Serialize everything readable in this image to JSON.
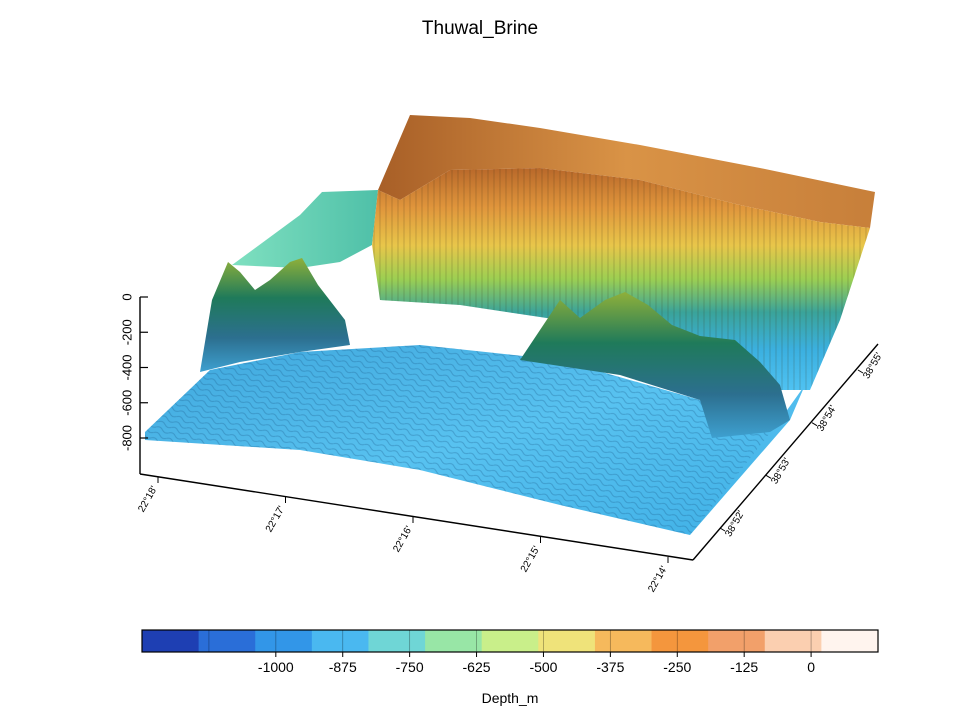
{
  "chart_data": {
    "type": "surface3d",
    "title": "Thuwal_Brine",
    "z_axis": {
      "label": "",
      "range": [
        -1000,
        0
      ],
      "ticks": [
        0,
        -200,
        -400,
        -600,
        -800
      ]
    },
    "x_axis": {
      "label": "",
      "ticks": [
        "22°18'",
        "22°17'",
        "22°16'",
        "22°15'",
        "22°14'"
      ]
    },
    "y_axis": {
      "label": "",
      "ticks": [
        "38°52'",
        "38°53'",
        "38°54'",
        "38°55'"
      ]
    },
    "colorbar": {
      "label": "Depth_m",
      "range": [
        -1250,
        125
      ],
      "ticks": [
        -1000,
        -875,
        -750,
        -625,
        -500,
        -375,
        -250,
        -125,
        0
      ],
      "segment_colors": [
        "#1e3fb3",
        "#2a6ed8",
        "#3296e8",
        "#4ab8f0",
        "#6fd6d6",
        "#98e6a6",
        "#c9ef8a",
        "#efe37a",
        "#f6b95c",
        "#f4963d",
        "#f2a06a",
        "#fbcfb0",
        "#fff4ee"
      ]
    },
    "features": {
      "basin_floor_depth": -900,
      "plateau_depth": -100,
      "ridge_peak_depth": -500
    }
  }
}
